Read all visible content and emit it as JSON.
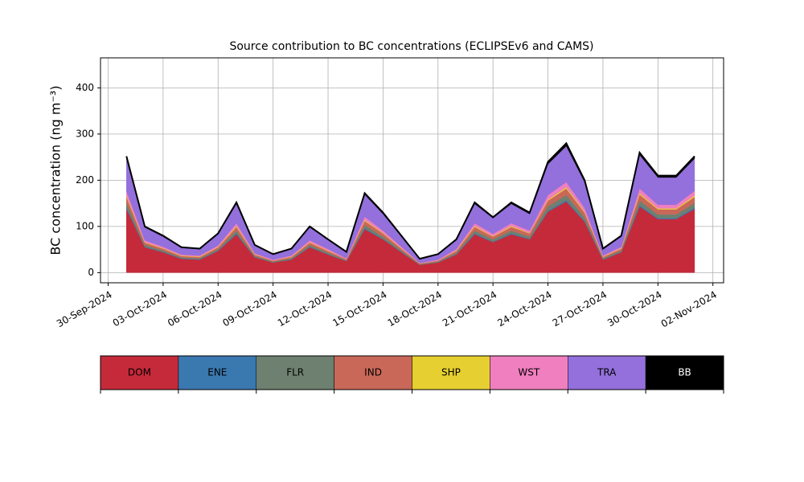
{
  "chart_data": {
    "type": "stacked_area",
    "title": "Source contribution to BC concentrations (ECLIPSEv6 and CAMS)",
    "y_label": "BC concentration (ng m⁻³)",
    "x": [
      "2024-10-01",
      "2024-10-02",
      "2024-10-03",
      "2024-10-04",
      "2024-10-05",
      "2024-10-06",
      "2024-10-07",
      "2024-10-08",
      "2024-10-09",
      "2024-10-10",
      "2024-10-11",
      "2024-10-12",
      "2024-10-13",
      "2024-10-14",
      "2024-10-15",
      "2024-10-16",
      "2024-10-17",
      "2024-10-18",
      "2024-10-19",
      "2024-10-20",
      "2024-10-21",
      "2024-10-22",
      "2024-10-23",
      "2024-10-24",
      "2024-10-25",
      "2024-10-26",
      "2024-10-27",
      "2024-10-28",
      "2024-10-29",
      "2024-10-30",
      "2024-10-31",
      "2024-11-01"
    ],
    "series": [
      {
        "name": "DOM",
        "color": "#c52a3a",
        "values": [
          138,
          55,
          44,
          30,
          28,
          47,
          83,
          33,
          22,
          28,
          55,
          39,
          25,
          94,
          72,
          44,
          17,
          22,
          39,
          83,
          66,
          83,
          72,
          132,
          154,
          110,
          28,
          44,
          143,
          116,
          116,
          138
        ]
      },
      {
        "name": "ENE",
        "color": "#3a78b0",
        "values": [
          3,
          1,
          1,
          1,
          1,
          1,
          2,
          1,
          0,
          1,
          1,
          1,
          0,
          2,
          1,
          1,
          0,
          0,
          1,
          2,
          1,
          2,
          1,
          2,
          3,
          2,
          1,
          1,
          3,
          2,
          2,
          3
        ]
      },
      {
        "name": "FLR",
        "color": "#6e8070",
        "values": [
          10,
          4,
          3,
          2,
          2,
          3,
          6,
          2,
          2,
          2,
          4,
          3,
          2,
          7,
          5,
          3,
          1,
          2,
          3,
          6,
          5,
          6,
          5,
          10,
          11,
          8,
          2,
          3,
          10,
          8,
          8,
          10
        ]
      },
      {
        "name": "IND",
        "color": "#c96858",
        "values": [
          13,
          5,
          4,
          3,
          3,
          4,
          8,
          3,
          2,
          3,
          5,
          4,
          2,
          9,
          7,
          4,
          2,
          2,
          4,
          8,
          6,
          8,
          7,
          12,
          14,
          10,
          3,
          4,
          13,
          11,
          11,
          13
        ]
      },
      {
        "name": "SHP",
        "color": "#e6cf30",
        "values": [
          3,
          1,
          1,
          1,
          1,
          1,
          2,
          1,
          0,
          1,
          1,
          1,
          0,
          2,
          1,
          1,
          0,
          0,
          1,
          2,
          1,
          2,
          1,
          2,
          3,
          2,
          1,
          1,
          3,
          2,
          2,
          3
        ]
      },
      {
        "name": "WST",
        "color": "#f07fbf",
        "values": [
          10,
          4,
          3,
          2,
          2,
          3,
          6,
          2,
          2,
          2,
          4,
          3,
          2,
          7,
          5,
          3,
          1,
          2,
          3,
          6,
          5,
          6,
          5,
          10,
          11,
          8,
          2,
          3,
          10,
          8,
          8,
          10
        ]
      },
      {
        "name": "TRA",
        "color": "#9370db",
        "values": [
          70,
          28,
          22,
          15,
          14,
          24,
          42,
          17,
          11,
          14,
          28,
          20,
          13,
          48,
          36,
          22,
          8,
          11,
          20,
          42,
          34,
          42,
          36,
          67,
          78,
          56,
          14,
          22,
          73,
          59,
          59,
          70
        ]
      },
      {
        "name": "BB",
        "color": "#000000",
        "values": [
          5,
          2,
          2,
          1,
          1,
          2,
          3,
          1,
          1,
          1,
          2,
          1,
          1,
          3,
          3,
          2,
          1,
          1,
          1,
          3,
          2,
          3,
          3,
          5,
          6,
          4,
          1,
          2,
          5,
          4,
          4,
          5
        ]
      }
    ],
    "xlim": [
      "2024-09-29T14:00",
      "2024-11-02T14:00"
    ],
    "xticks": [
      {
        "value": "2024-09-30",
        "label": "30-Sep-2024"
      },
      {
        "value": "2024-10-03",
        "label": "03-Oct-2024"
      },
      {
        "value": "2024-10-06",
        "label": "06-Oct-2024"
      },
      {
        "value": "2024-10-09",
        "label": "09-Oct-2024"
      },
      {
        "value": "2024-10-12",
        "label": "12-Oct-2024"
      },
      {
        "value": "2024-10-15",
        "label": "15-Oct-2024"
      },
      {
        "value": "2024-10-18",
        "label": "18-Oct-2024"
      },
      {
        "value": "2024-10-21",
        "label": "21-Oct-2024"
      },
      {
        "value": "2024-10-24",
        "label": "24-Oct-2024"
      },
      {
        "value": "2024-10-27",
        "label": "27-Oct-2024"
      },
      {
        "value": "2024-10-30",
        "label": "30-Oct-2024"
      },
      {
        "value": "2024-11-02",
        "label": "02-Nov-2024"
      }
    ],
    "ylim": [
      -22,
      465
    ],
    "yticks": [
      0,
      100,
      200,
      300,
      400
    ],
    "grid": true
  }
}
